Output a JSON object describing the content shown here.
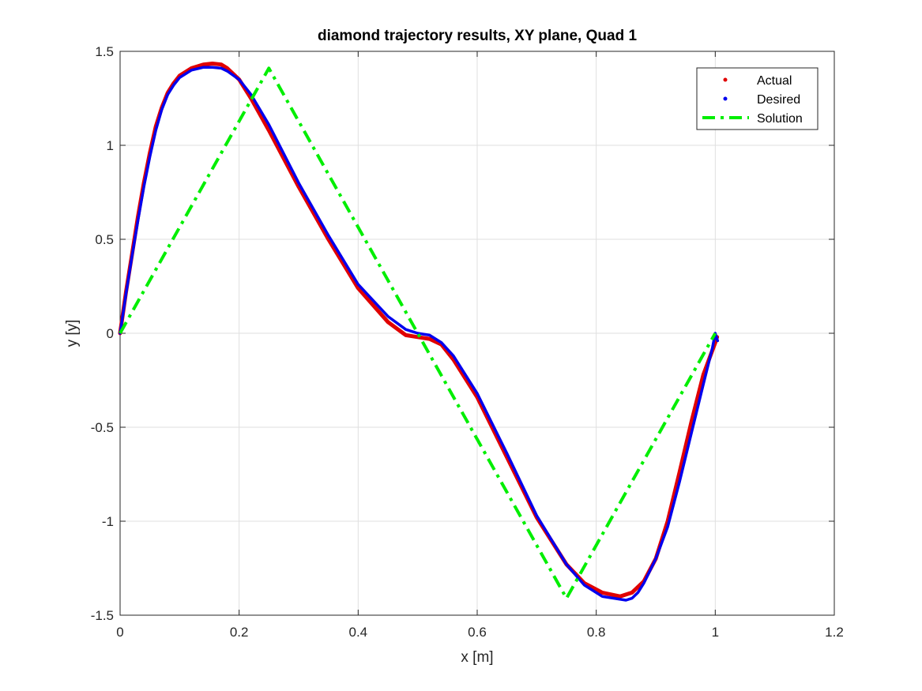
{
  "chart_data": {
    "type": "line",
    "title": "diamond trajectory results, XY plane, Quad 1",
    "xlabel": "x [m]",
    "ylabel": "y [y]",
    "xlim": [
      0,
      1.2
    ],
    "ylim": [
      -1.5,
      1.5
    ],
    "xticks": [
      0,
      0.2,
      0.4,
      0.6,
      0.8,
      1,
      1.2
    ],
    "yticks": [
      -1.5,
      -1,
      -0.5,
      0,
      0.5,
      1,
      1.5
    ],
    "xtick_labels": [
      "0",
      "0.2",
      "0.4",
      "0.6",
      "0.8",
      "1",
      "1.2"
    ],
    "ytick_labels": [
      "-1.5",
      "-1",
      "-0.5",
      "0",
      "0.5",
      "1",
      "1.5"
    ],
    "grid": true,
    "legend_position": "top-right",
    "series": [
      {
        "name": "Actual",
        "color": "#e00000",
        "style": "dots",
        "points": [
          [
            0,
            0
          ],
          [
            0.01,
            0.22
          ],
          [
            0.02,
            0.42
          ],
          [
            0.03,
            0.62
          ],
          [
            0.04,
            0.8
          ],
          [
            0.05,
            0.96
          ],
          [
            0.06,
            1.1
          ],
          [
            0.07,
            1.2
          ],
          [
            0.08,
            1.28
          ],
          [
            0.09,
            1.33
          ],
          [
            0.1,
            1.37
          ],
          [
            0.12,
            1.41
          ],
          [
            0.14,
            1.43
          ],
          [
            0.155,
            1.435
          ],
          [
            0.17,
            1.43
          ],
          [
            0.18,
            1.41
          ],
          [
            0.2,
            1.35
          ],
          [
            0.22,
            1.25
          ],
          [
            0.25,
            1.08
          ],
          [
            0.3,
            0.78
          ],
          [
            0.35,
            0.5
          ],
          [
            0.4,
            0.24
          ],
          [
            0.45,
            0.06
          ],
          [
            0.48,
            -0.01
          ],
          [
            0.5,
            -0.02
          ],
          [
            0.52,
            -0.03
          ],
          [
            0.54,
            -0.06
          ],
          [
            0.56,
            -0.14
          ],
          [
            0.6,
            -0.34
          ],
          [
            0.65,
            -0.66
          ],
          [
            0.7,
            -0.98
          ],
          [
            0.75,
            -1.23
          ],
          [
            0.78,
            -1.33
          ],
          [
            0.81,
            -1.38
          ],
          [
            0.84,
            -1.4
          ],
          [
            0.86,
            -1.38
          ],
          [
            0.88,
            -1.32
          ],
          [
            0.9,
            -1.2
          ],
          [
            0.92,
            -1.0
          ],
          [
            0.94,
            -0.74
          ],
          [
            0.96,
            -0.47
          ],
          [
            0.98,
            -0.22
          ],
          [
            1.0,
            -0.05
          ],
          [
            1.003,
            -0.02
          ]
        ]
      },
      {
        "name": "Desired",
        "color": "#0000ee",
        "style": "dots",
        "points": [
          [
            0,
            0
          ],
          [
            0.01,
            0.21
          ],
          [
            0.02,
            0.41
          ],
          [
            0.03,
            0.6
          ],
          [
            0.04,
            0.78
          ],
          [
            0.05,
            0.94
          ],
          [
            0.06,
            1.08
          ],
          [
            0.07,
            1.19
          ],
          [
            0.08,
            1.27
          ],
          [
            0.09,
            1.32
          ],
          [
            0.1,
            1.36
          ],
          [
            0.12,
            1.4
          ],
          [
            0.14,
            1.415
          ],
          [
            0.155,
            1.415
          ],
          [
            0.17,
            1.41
          ],
          [
            0.18,
            1.395
          ],
          [
            0.2,
            1.35
          ],
          [
            0.22,
            1.27
          ],
          [
            0.25,
            1.11
          ],
          [
            0.3,
            0.8
          ],
          [
            0.35,
            0.52
          ],
          [
            0.4,
            0.26
          ],
          [
            0.45,
            0.09
          ],
          [
            0.48,
            0.02
          ],
          [
            0.5,
            0.0
          ],
          [
            0.52,
            -0.01
          ],
          [
            0.54,
            -0.05
          ],
          [
            0.56,
            -0.12
          ],
          [
            0.6,
            -0.32
          ],
          [
            0.65,
            -0.64
          ],
          [
            0.7,
            -0.97
          ],
          [
            0.75,
            -1.23
          ],
          [
            0.78,
            -1.34
          ],
          [
            0.81,
            -1.4
          ],
          [
            0.83,
            -1.41
          ],
          [
            0.85,
            -1.42
          ],
          [
            0.86,
            -1.41
          ],
          [
            0.87,
            -1.38
          ],
          [
            0.88,
            -1.33
          ],
          [
            0.9,
            -1.2
          ],
          [
            0.92,
            -1.03
          ],
          [
            0.94,
            -0.79
          ],
          [
            0.96,
            -0.53
          ],
          [
            0.98,
            -0.27
          ],
          [
            0.995,
            -0.08
          ],
          [
            1.0,
            0.0
          ],
          [
            1.004,
            -0.04
          ]
        ]
      },
      {
        "name": "Solution",
        "color": "#00ee00",
        "style": "dash-dot",
        "points": [
          [
            0,
            0
          ],
          [
            0.25,
            1.41
          ],
          [
            0.5,
            0
          ],
          [
            0.75,
            -1.41
          ],
          [
            1.0,
            0
          ]
        ]
      }
    ]
  }
}
